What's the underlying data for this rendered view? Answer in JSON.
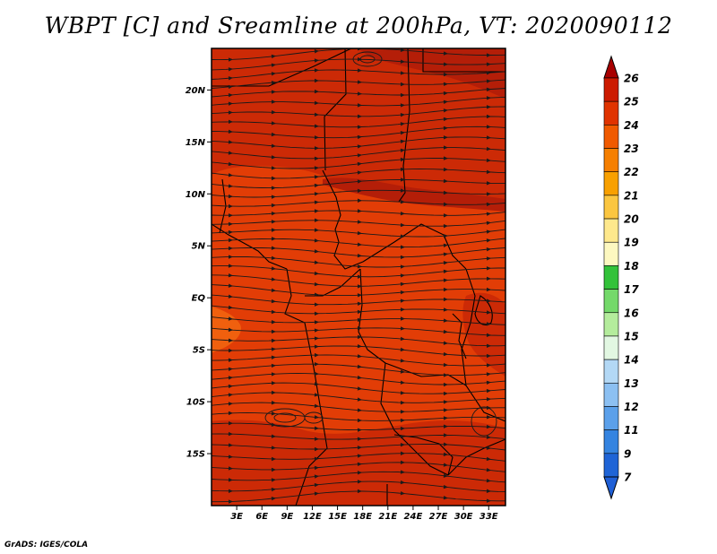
{
  "title": "WBPT [C] and Sreamline at 200hPa, VT: 2020090112",
  "footer": "GrADS: IGES/COLA",
  "map": {
    "lon_range": [
      0,
      35
    ],
    "lat_range": [
      -20,
      24
    ],
    "lat_ticks": [
      {
        "value": 20,
        "label": "20N"
      },
      {
        "value": 15,
        "label": "15N"
      },
      {
        "value": 10,
        "label": "10N"
      },
      {
        "value": 5,
        "label": "5N"
      },
      {
        "value": 0,
        "label": "EQ"
      },
      {
        "value": -5,
        "label": "5S"
      },
      {
        "value": -10,
        "label": "10S"
      },
      {
        "value": -15,
        "label": "15S"
      }
    ],
    "lon_ticks": [
      {
        "value": 3,
        "label": "3E"
      },
      {
        "value": 6,
        "label": "6E"
      },
      {
        "value": 9,
        "label": "9E"
      },
      {
        "value": 12,
        "label": "12E"
      },
      {
        "value": 15,
        "label": "15E"
      },
      {
        "value": 18,
        "label": "18E"
      },
      {
        "value": 21,
        "label": "21E"
      },
      {
        "value": 24,
        "label": "24E"
      },
      {
        "value": 27,
        "label": "27E"
      },
      {
        "value": 30,
        "label": "30E"
      },
      {
        "value": 33,
        "label": "33E"
      }
    ],
    "field_colors": {
      "above_25": "#b41e08",
      "24_25": "#cc2a06",
      "23_24": "#e23d06",
      "22_23": "#f0600e",
      "streamline": "#1a1a1a",
      "border": "#000000"
    }
  },
  "colorbar": {
    "levels": [
      {
        "label": "26",
        "color": "#b50000"
      },
      {
        "label": "25",
        "color": "#cc1a00"
      },
      {
        "label": "24",
        "color": "#e03300"
      },
      {
        "label": "23",
        "color": "#f05a00"
      },
      {
        "label": "22",
        "color": "#f57f00"
      },
      {
        "label": "21",
        "color": "#f8a000"
      },
      {
        "label": "20",
        "color": "#fbc640"
      },
      {
        "label": "19",
        "color": "#fee88c"
      },
      {
        "label": "18",
        "color": "#fdf8c0"
      },
      {
        "label": "17",
        "color": "#33c23a"
      },
      {
        "label": "16",
        "color": "#74d96a"
      },
      {
        "label": "15",
        "color": "#b4ec9c"
      },
      {
        "label": "14",
        "color": "#e2f7e2"
      },
      {
        "label": "13",
        "color": "#b3d8f5"
      },
      {
        "label": "12",
        "color": "#8cc0f2"
      },
      {
        "label": "11",
        "color": "#5ba0ea"
      },
      {
        "label": "9",
        "color": "#3584e0"
      },
      {
        "label": "7",
        "color": "#1f64d6"
      }
    ],
    "top_arrow_color": "#a80000",
    "bottom_arrow_color": "#1f5fd6"
  }
}
